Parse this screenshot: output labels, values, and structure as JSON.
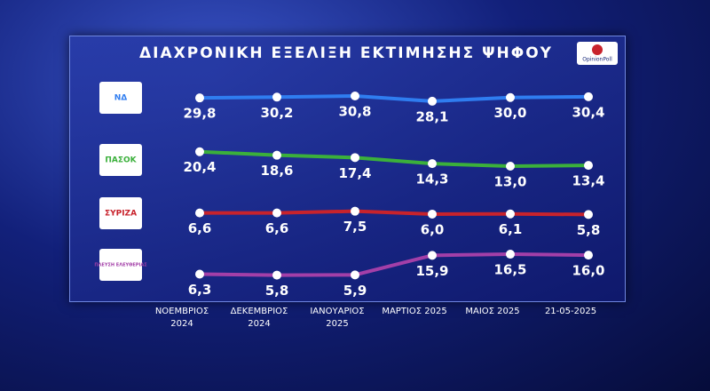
{
  "chart_data": {
    "type": "line",
    "title": "ΔΙΑΧΡΟΝΙΚΗ ΕΞΕΛΙΞΗ ΕΚΤΙΜΗΣΗΣ ΨΗΦΟΥ",
    "source": "OpinionPoll",
    "categories": [
      "ΝΟΕΜΒΡΙΟΣ 2024",
      "ΔΕΚΕΜΒΡΙΟΣ 2024",
      "ΙΑΝΟΥΑΡΙΟΣ 2025",
      "ΜΑΡΤΙΟΣ 2025",
      "ΜΑΙΟΣ 2025",
      "21-05-2025"
    ],
    "series": [
      {
        "name": "ΝΔ",
        "color": "#2f7df0",
        "values": [
          29.8,
          30.2,
          30.8,
          28.1,
          30.0,
          30.4
        ],
        "value_labels": [
          "29,8",
          "30,2",
          "30,8",
          "28,1",
          "30,0",
          "30,4"
        ]
      },
      {
        "name": "ΠΑΣΟΚ",
        "color": "#3bb03b",
        "values": [
          20.4,
          18.6,
          17.4,
          14.3,
          13.0,
          13.4
        ],
        "value_labels": [
          "20,4",
          "18,6",
          "17,4",
          "14,3",
          "13,0",
          "13,4"
        ]
      },
      {
        "name": "ΣΥΡΙΖΑ",
        "color": "#c8232c",
        "values": [
          6.6,
          6.6,
          7.5,
          6.0,
          6.1,
          5.8
        ],
        "value_labels": [
          "6,6",
          "6,6",
          "7,5",
          "6,0",
          "6,1",
          "5,8"
        ]
      },
      {
        "name": "ΠΛΕΥΣΗ ΕΛΕΥΘΕΡΙΑΣ",
        "color": "#a33fa8",
        "values": [
          6.3,
          5.8,
          5.9,
          15.9,
          16.5,
          16.0
        ],
        "value_labels": [
          "6,3",
          "5,8",
          "5,9",
          "15,9",
          "16,5",
          "16,0"
        ]
      }
    ]
  }
}
